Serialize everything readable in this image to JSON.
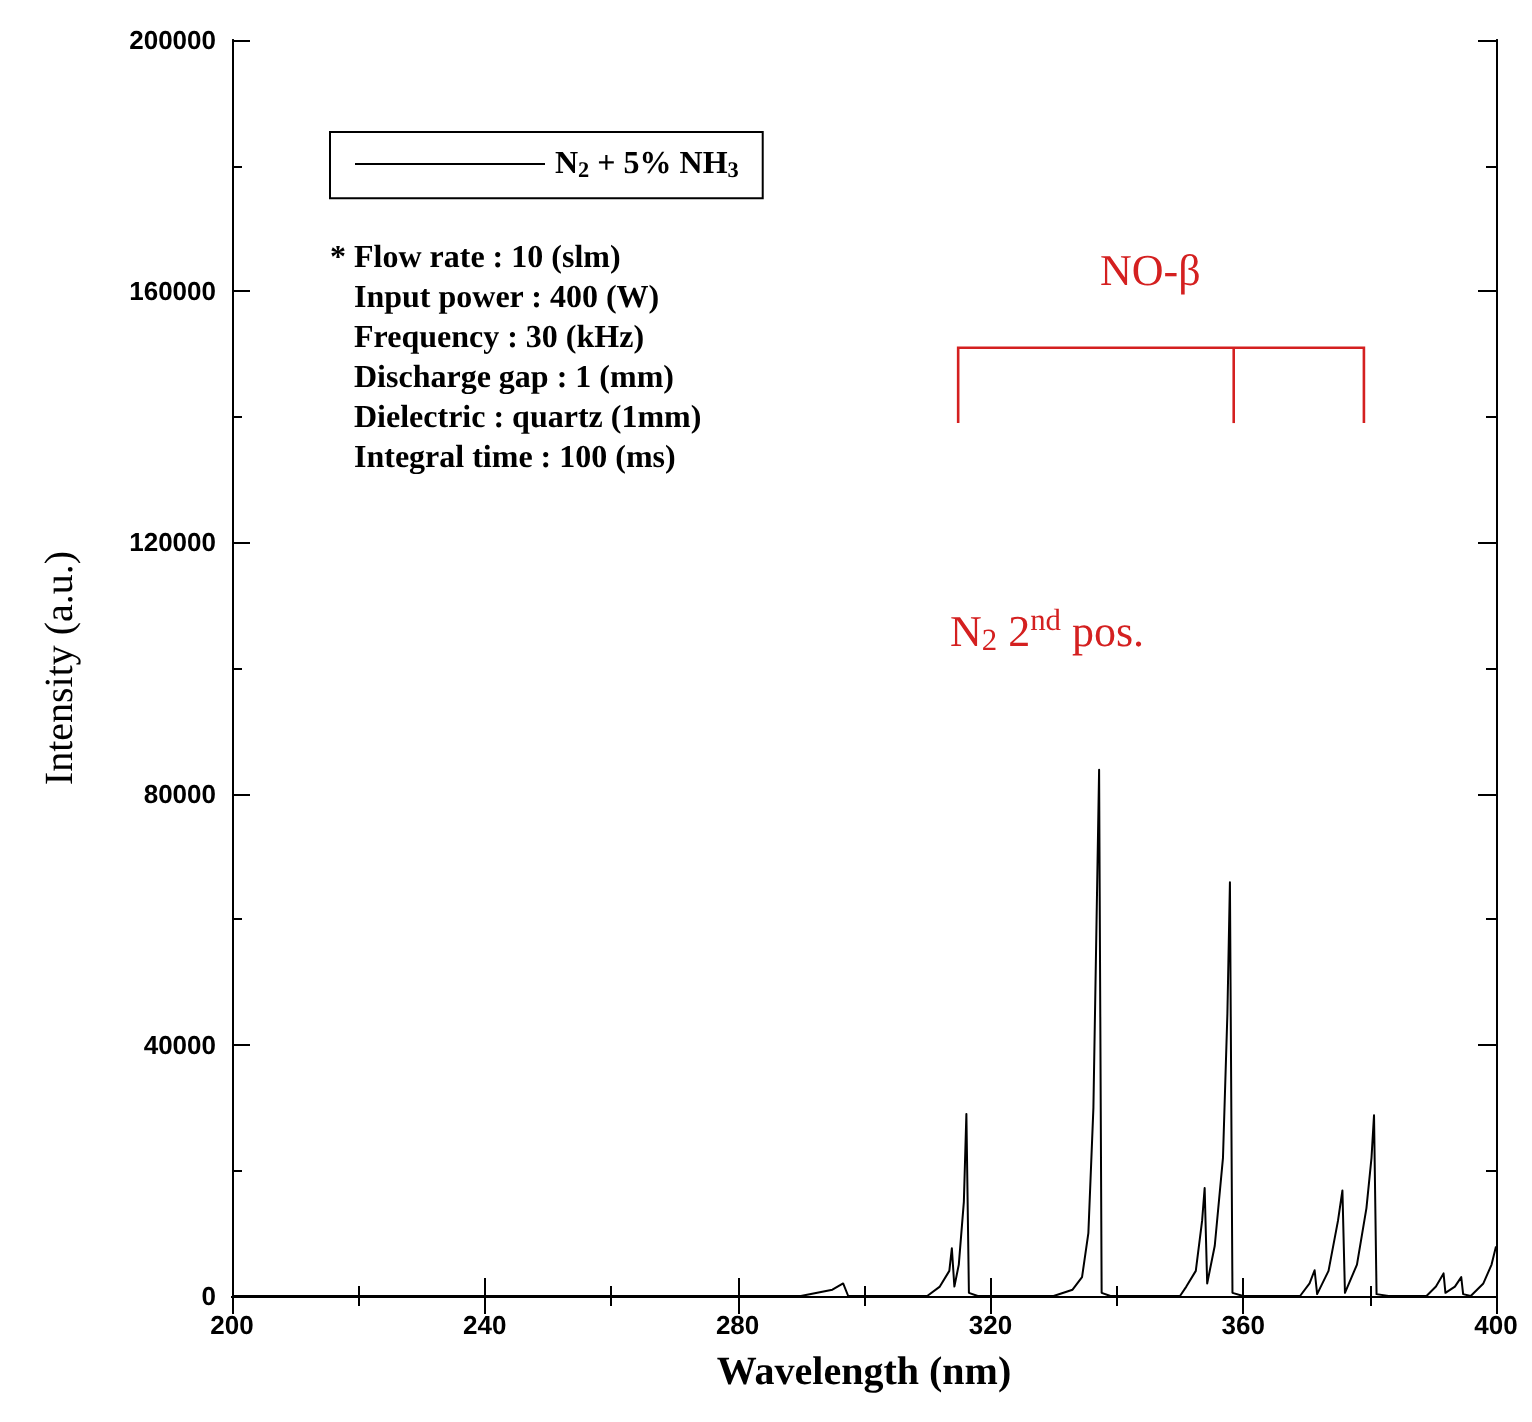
{
  "chart_data": {
    "type": "line",
    "xlabel": "Wavelength (nm)",
    "ylabel": "Intensity (a.u.)",
    "xlim": [
      200,
      400
    ],
    "xticks": [
      200,
      240,
      280,
      320,
      360,
      400
    ],
    "ylim": [
      0,
      200000
    ],
    "yticks": [
      0,
      40000,
      80000,
      120000,
      160000,
      200000
    ],
    "grid": false,
    "legend": "top left",
    "marker": "none",
    "line_style": "solid",
    "series": [
      {
        "name": "N$_{2}$ + 5% NH$_{3}$",
        "color": "#000000",
        "x": [
          200,
          290,
          295,
          296.7,
          297.5,
          310,
          312,
          313.5,
          313.9,
          314.3,
          315,
          315.8,
          316.2,
          316.6,
          318,
          330,
          333,
          334.5,
          335.5,
          336.3,
          336.8,
          337.2,
          337.6,
          339,
          350,
          351,
          352.5,
          353.5,
          353.9,
          354.3,
          355.5,
          356.8,
          357.5,
          357.9,
          358.3,
          360,
          369,
          370.5,
          371.3,
          371.7,
          373.5,
          375,
          375.7,
          376.1,
          378,
          379.5,
          380.3,
          380.7,
          381.1,
          383,
          389,
          390.5,
          391.7,
          392,
          393.5,
          394.5,
          394.8,
          396,
          398,
          399.3,
          400
        ],
        "values": [
          0,
          0,
          1000,
          2000,
          0,
          0,
          1500,
          4000,
          7600,
          1500,
          5000,
          15000,
          29000,
          500,
          0,
          0,
          1000,
          3000,
          10000,
          30000,
          60000,
          83800,
          500,
          0,
          0,
          1500,
          4000,
          12000,
          17200,
          2000,
          8000,
          22000,
          45000,
          65900,
          500,
          0,
          0,
          2000,
          4100,
          300,
          4000,
          12000,
          16800,
          500,
          5000,
          14000,
          22000,
          28800,
          300,
          0,
          0,
          1500,
          3600,
          500,
          1500,
          3000,
          300,
          0,
          2000,
          5000,
          7900
        ]
      }
    ],
    "annotations": [
      "* Flow rate : 10 (slm)\n   Input power : 400 (W)\n   Frequency : 30 (kHz)\n   Discharge gap : 1 (mm)\n   Dielectric : quartz (1mm)\n   Integral time : 100 (ms)",
      "NO-β",
      "N$_{2}$ 2$^{nd}$ pos."
    ]
  }
}
